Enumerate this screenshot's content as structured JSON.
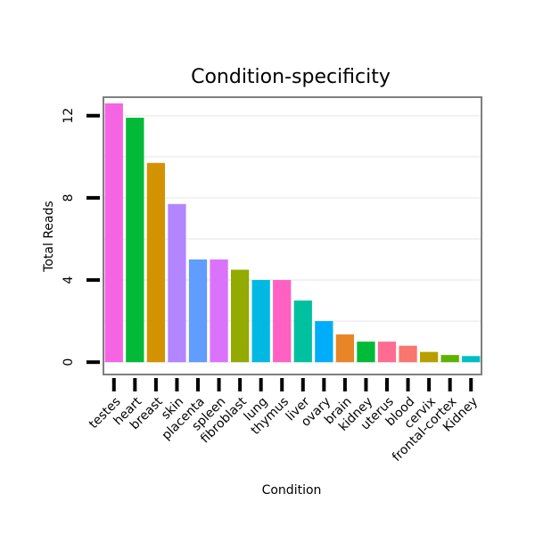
{
  "chart_data": {
    "type": "bar",
    "title": "Condition-specificity",
    "xlabel": "Condition",
    "ylabel": "Total Reads",
    "ylim": [
      -0.6,
      12.9
    ],
    "yticks": [
      0,
      4,
      8,
      12
    ],
    "grid": true,
    "categories": [
      "testes",
      "heart",
      "breast",
      "skin",
      "placenta",
      "spleen",
      "fibroblast",
      "lung",
      "thymus",
      "liver",
      "ovary",
      "brain",
      "kidney",
      "uterus",
      "blood",
      "cervix",
      "frontal-cortex",
      "Kidney"
    ],
    "values": [
      12.6,
      11.9,
      9.7,
      7.7,
      5.0,
      5.0,
      4.5,
      4.0,
      4.0,
      3.0,
      2.0,
      1.35,
      1.0,
      1.0,
      0.8,
      0.5,
      0.35,
      0.3
    ],
    "colors": [
      "#F564E3",
      "#00BA38",
      "#D39200",
      "#B385FF",
      "#619CFF",
      "#DB72FB",
      "#93AA00",
      "#00B9E3",
      "#FF61C3",
      "#00C19F",
      "#00ADFA",
      "#E88526",
      "#00BA38",
      "#FF6C91",
      "#F8766D",
      "#B79F00",
      "#5EB300",
      "#00BFC4"
    ]
  }
}
